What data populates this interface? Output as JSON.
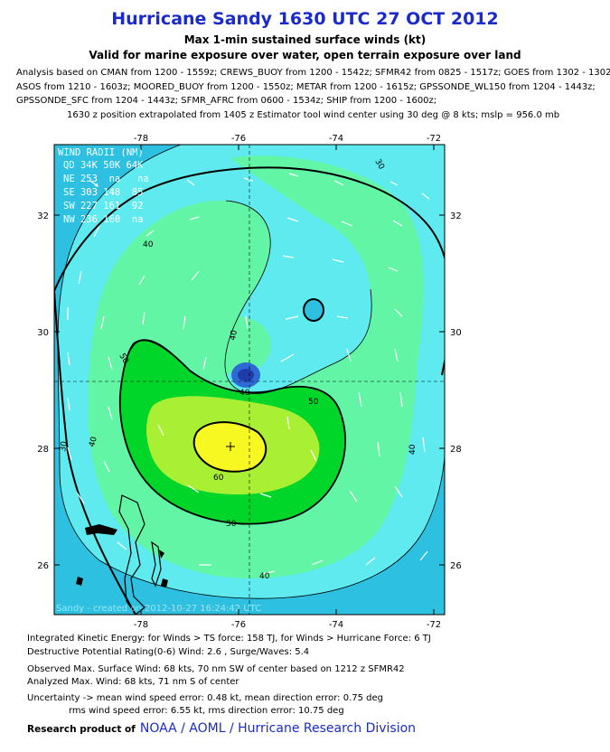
{
  "header": {
    "title": "Hurricane Sandy 1630 UTC 27 OCT 2012",
    "subtitle1": "Max 1-min sustained surface winds (kt)",
    "subtitle2": "Valid for marine exposure over water, open terrain exposure over land"
  },
  "analysis": {
    "line1": "Analysis based on CMAN from 1200 - 1559z; CREWS_BUOY from 1200 - 1542z; SFMR42 from 0825 - 1517z; GOES from 1302 - 1302z;",
    "line2": "ASOS from 1210 - 1603z; MOORED_BUOY from 1200 - 1550z; METAR from 1200 - 1615z; GPSSONDE_WL150 from 1204 - 1443z;",
    "line3": "GPSSONDE_SFC from 1204 - 1443z; SFMR_AFRC from 0600 - 1534z; SHIP from 1200 - 1600z;",
    "line4": "1630 z position extrapolated from 1405 z Estimator tool wind center using 30 deg @ 8 kts; mslp = 956.0 mb"
  },
  "map": {
    "lon_ticks": [
      "-78",
      "-76",
      "-74",
      "-72"
    ],
    "lat_ticks": [
      "32",
      "30",
      "28",
      "26"
    ],
    "lon_range": [
      -79.6,
      -71.6
    ],
    "lat_range": [
      25.0,
      33.2
    ],
    "center": {
      "lon": -76.1,
      "lat": 28.0
    },
    "contour_labels": [
      "30",
      "30",
      "40",
      "40",
      "40",
      "40",
      "40",
      "50",
      "50",
      "50",
      "60",
      "40"
    ],
    "colors": {
      "lt30": "#2dc0e0",
      "c30": "#5eeaee",
      "c40": "#63f5a6",
      "c50": "#00d52a",
      "c60": "#a9f034",
      "c64": "#f7f722",
      "eye": "#2f6ad4",
      "land": "#000000",
      "arrow": "#ffffff"
    },
    "wind_radii": {
      "title": "WIND RADII (NM)",
      "header": "QD 34K 50K 64K",
      "rows": [
        "NE 253  na   na",
        "SE 303 148  85",
        "SW 227 161  92",
        "NW 236 160  na"
      ]
    },
    "watermark": "Sandy - created on 2012-10-27 16:24:42 UTC"
  },
  "stats": {
    "ike": "Integrated Kinetic Energy: for Winds > TS force: 158 TJ, for Winds > Hurricane Force: 6 TJ",
    "dpr": "Destructive Potential Rating(0-6)  Wind: 2.6 , Surge/Waves: 5.4",
    "observed": "Observed Max. Surface Wind: 68 kts, 70 nm SW of center based on 1212 z SFMR42",
    "analyzed": "Analyzed Max. Wind: 68 kts, 71 nm  S of center",
    "uncertainty1": "Uncertainty -> mean wind speed error: 0.48 kt, mean direction error: 0.75 deg",
    "uncertainty2": "rms wind speed error: 6.55 kt, rms direction error: 10.75 deg"
  },
  "credit": {
    "prefix": "Research product of",
    "org": "NOAA  /  AOML  /  Hurricane Research Division"
  }
}
